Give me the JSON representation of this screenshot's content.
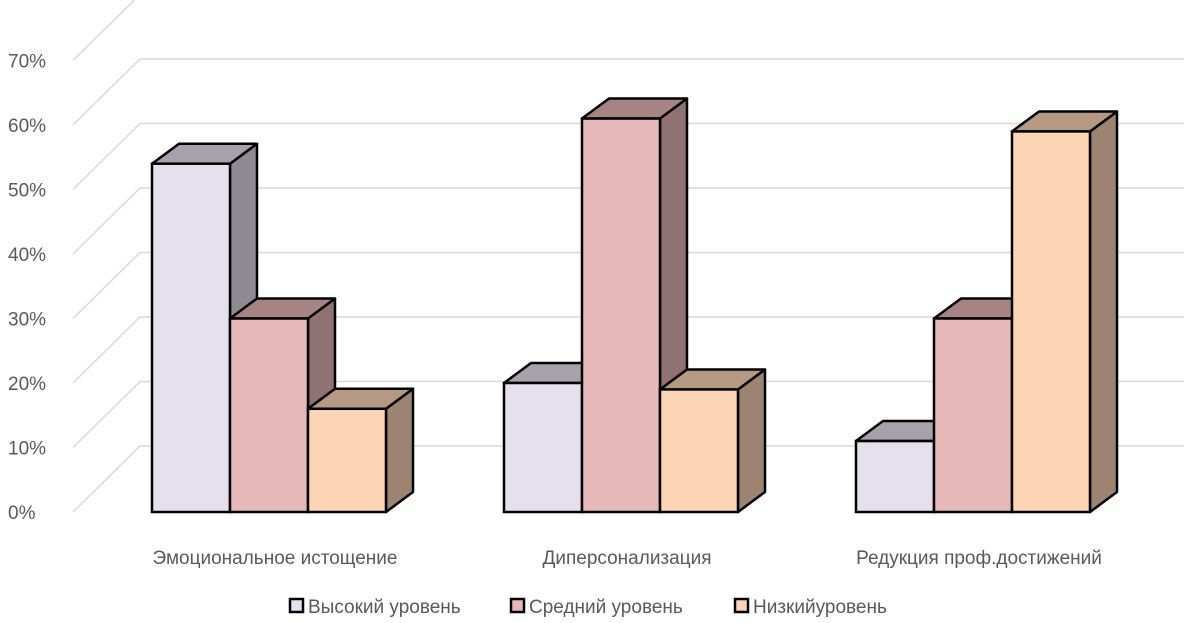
{
  "chart_data": {
    "type": "bar",
    "style": "3d-clustered-column",
    "title": "",
    "xlabel": "",
    "ylabel": "",
    "categories": [
      "Эмоциональное истощение",
      "Диперсонализация",
      "Редукция проф.достижений"
    ],
    "series": [
      {
        "name": "Высокий уровень",
        "values": [
          54,
          20,
          11
        ],
        "color": "#E6DFED"
      },
      {
        "name": "Средний уровень",
        "values": [
          30,
          61,
          30
        ],
        "color": "#E6B8B7"
      },
      {
        "name": "Низкийуровень",
        "values": [
          16,
          19,
          59
        ],
        "color": "#FCD5B4"
      }
    ],
    "ylim": [
      0,
      70
    ],
    "ytick_values": [
      0,
      10,
      20,
      30,
      40,
      50,
      60,
      70
    ],
    "yticks": [
      "0%",
      "10%",
      "20%",
      "30%",
      "40%",
      "50%",
      "60%",
      "70%"
    ],
    "grid": true,
    "legend_position": "bottom"
  }
}
